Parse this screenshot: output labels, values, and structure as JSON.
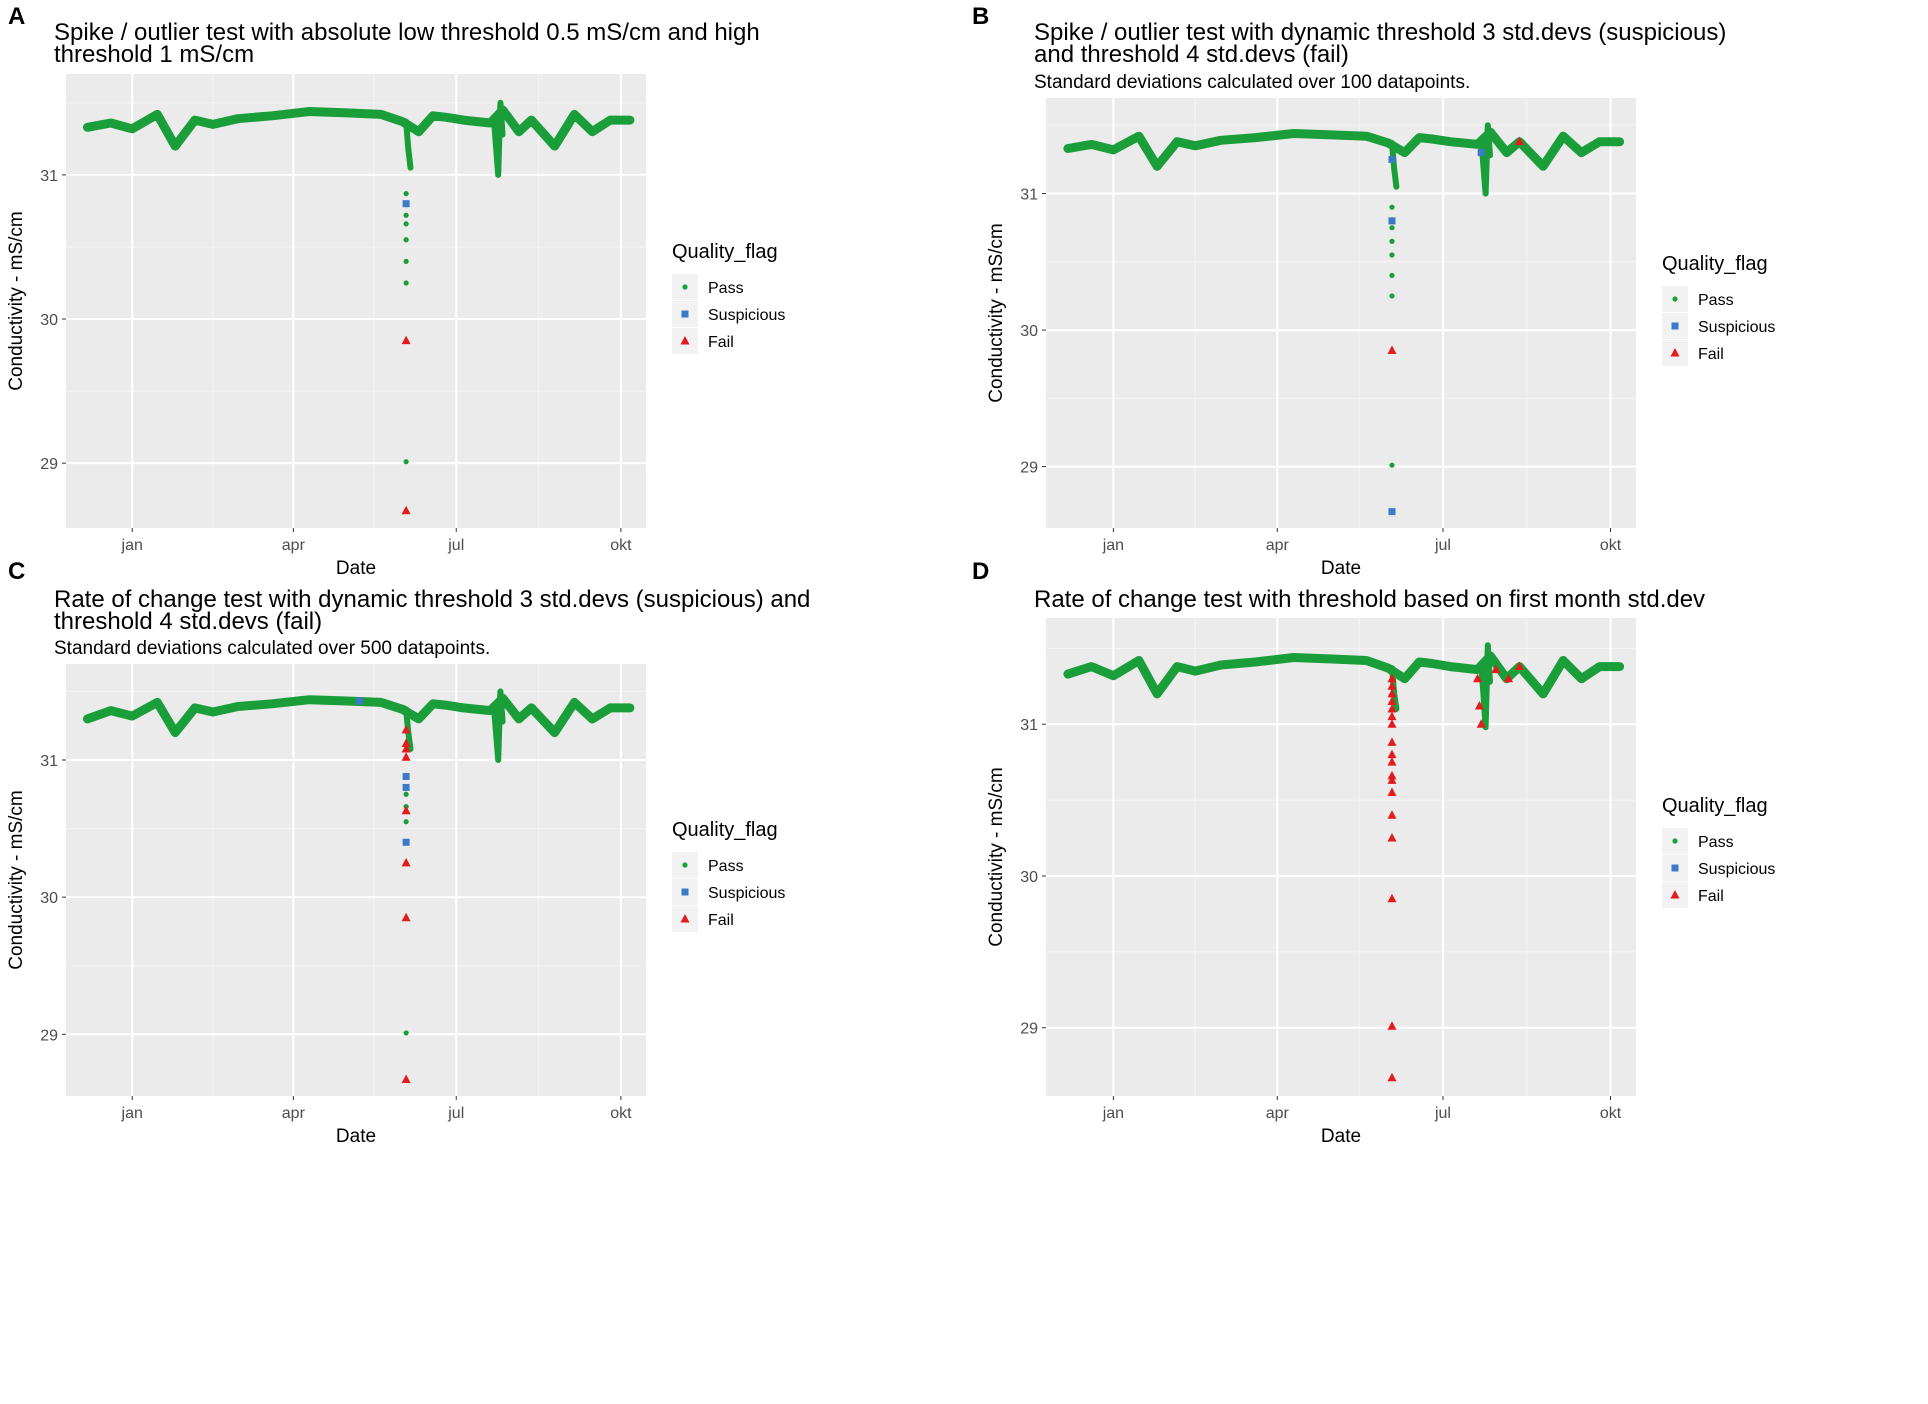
{
  "colors": {
    "pass": "#1a9e3a",
    "suspicious": "#3b7ac6",
    "fail": "#e41a1c",
    "panel_bg": "#ebebeb",
    "grid": "#ffffff"
  },
  "legend": {
    "title": "Quality_flag",
    "entries": [
      {
        "key": "pass",
        "label": "Pass",
        "shape": "circle"
      },
      {
        "key": "suspicious",
        "label": "Suspicious",
        "shape": "square"
      },
      {
        "key": "fail",
        "label": "Fail",
        "shape": "triangle"
      }
    ]
  },
  "chart_data": [
    {
      "panel": "A",
      "type": "scatter",
      "title_lines": [
        "Spike / outlier test with absolute low threshold 0.5 mS/cm and high",
        "threshold 1 mS/cm"
      ],
      "subtitle": "",
      "xlabel": "Date",
      "ylabel": "Conductivity - mS/cm",
      "x_ticks": [
        "jan",
        "apr",
        "jul",
        "okt"
      ],
      "y_ticks": [
        29,
        30,
        31
      ],
      "ylim": [
        28.55,
        31.7
      ],
      "grid": true,
      "legend_position": "right",
      "baseline": {
        "x": [
          "2018-12-07",
          "2018-12-20",
          "2019-01-01",
          "2019-01-15",
          "2019-01-25",
          "2019-02-05",
          "2019-02-15",
          "2019-03-01",
          "2019-03-20",
          "2019-04-10",
          "2019-05-01",
          "2019-05-20",
          "2019-06-01",
          "2019-06-10",
          "2019-06-18",
          "2019-06-25",
          "2019-07-05",
          "2019-07-20",
          "2019-07-27",
          "2019-08-05",
          "2019-08-12",
          "2019-08-25",
          "2019-09-05",
          "2019-09-15",
          "2019-09-25",
          "2019-10-06"
        ],
        "y": [
          31.33,
          31.36,
          31.32,
          31.42,
          31.2,
          31.38,
          31.35,
          31.39,
          31.41,
          31.44,
          31.43,
          31.42,
          31.37,
          31.3,
          31.41,
          31.4,
          31.38,
          31.36,
          31.45,
          31.3,
          31.38,
          31.2,
          31.42,
          31.3,
          31.38,
          31.38
        ]
      },
      "dips": [
        {
          "x": "2019-06-03",
          "y": [
            31.37,
            31.18,
            31.05
          ]
        },
        {
          "x": "2019-07-22",
          "y": [
            31.4,
            31.2,
            31.0,
            31.5,
            31.28
          ]
        }
      ],
      "points": [
        {
          "x": "2019-06-03",
          "y": 30.87,
          "flag": "pass"
        },
        {
          "x": "2019-06-03",
          "y": 30.8,
          "flag": "suspicious"
        },
        {
          "x": "2019-06-03",
          "y": 30.72,
          "flag": "pass"
        },
        {
          "x": "2019-06-03",
          "y": 30.66,
          "flag": "pass"
        },
        {
          "x": "2019-06-03",
          "y": 30.55,
          "flag": "pass"
        },
        {
          "x": "2019-06-03",
          "y": 30.4,
          "flag": "pass"
        },
        {
          "x": "2019-06-03",
          "y": 30.25,
          "flag": "pass"
        },
        {
          "x": "2019-06-03",
          "y": 29.85,
          "flag": "fail"
        },
        {
          "x": "2019-06-03",
          "y": 29.01,
          "flag": "pass"
        },
        {
          "x": "2019-06-03",
          "y": 28.67,
          "flag": "fail"
        }
      ]
    },
    {
      "panel": "B",
      "type": "scatter",
      "title_lines": [
        "Spike / outlier test with dynamic threshold 3 std.devs (suspicious)",
        "and threshold 4 std.devs (fail)"
      ],
      "subtitle": "Standard deviations calculated over 100 datapoints.",
      "xlabel": "Date",
      "ylabel": "Conductivity - mS/cm",
      "x_ticks": [
        "jan",
        "apr",
        "jul",
        "okt"
      ],
      "y_ticks": [
        29,
        30,
        31
      ],
      "ylim": [
        28.55,
        31.7
      ],
      "grid": true,
      "legend_position": "right",
      "baseline": {
        "x": [
          "2018-12-07",
          "2018-12-20",
          "2019-01-01",
          "2019-01-15",
          "2019-01-25",
          "2019-02-05",
          "2019-02-15",
          "2019-03-01",
          "2019-03-20",
          "2019-04-10",
          "2019-05-01",
          "2019-05-20",
          "2019-06-01",
          "2019-06-10",
          "2019-06-18",
          "2019-06-25",
          "2019-07-05",
          "2019-07-20",
          "2019-07-27",
          "2019-08-05",
          "2019-08-12",
          "2019-08-25",
          "2019-09-05",
          "2019-09-15",
          "2019-09-25",
          "2019-10-06"
        ],
        "y": [
          31.33,
          31.36,
          31.32,
          31.42,
          31.2,
          31.38,
          31.35,
          31.39,
          31.41,
          31.44,
          31.43,
          31.42,
          31.37,
          31.3,
          31.41,
          31.4,
          31.38,
          31.36,
          31.45,
          31.3,
          31.38,
          31.2,
          31.42,
          31.3,
          31.38,
          31.38
        ]
      },
      "dips": [
        {
          "x": "2019-06-03",
          "y": [
            31.37,
            31.18,
            31.05
          ]
        },
        {
          "x": "2019-07-22",
          "y": [
            31.4,
            31.2,
            31.0,
            31.5,
            31.28
          ]
        }
      ],
      "points": [
        {
          "x": "2019-06-03",
          "y": 31.25,
          "flag": "suspicious"
        },
        {
          "x": "2019-06-03",
          "y": 30.9,
          "flag": "pass"
        },
        {
          "x": "2019-06-03",
          "y": 30.8,
          "flag": "suspicious"
        },
        {
          "x": "2019-06-03",
          "y": 30.75,
          "flag": "pass"
        },
        {
          "x": "2019-06-03",
          "y": 30.65,
          "flag": "pass"
        },
        {
          "x": "2019-06-03",
          "y": 30.55,
          "flag": "pass"
        },
        {
          "x": "2019-06-03",
          "y": 30.4,
          "flag": "pass"
        },
        {
          "x": "2019-06-03",
          "y": 30.25,
          "flag": "pass"
        },
        {
          "x": "2019-06-03",
          "y": 29.85,
          "flag": "fail"
        },
        {
          "x": "2019-06-03",
          "y": 29.01,
          "flag": "pass"
        },
        {
          "x": "2019-06-03",
          "y": 28.67,
          "flag": "suspicious"
        },
        {
          "x": "2019-07-22",
          "y": 31.3,
          "flag": "suspicious"
        },
        {
          "x": "2019-08-12",
          "y": 31.38,
          "flag": "fail"
        }
      ]
    },
    {
      "panel": "C",
      "type": "scatter",
      "title_lines": [
        "Rate of change test with dynamic threshold 3 std.devs (suspicious) and",
        "threshold 4 std.devs (fail)"
      ],
      "subtitle": "Standard deviations calculated over 500 datapoints.",
      "xlabel": "Date",
      "ylabel": "Conductivity - mS/cm",
      "x_ticks": [
        "jan",
        "apr",
        "jul",
        "okt"
      ],
      "y_ticks": [
        29,
        30,
        31
      ],
      "ylim": [
        28.55,
        31.7
      ],
      "grid": true,
      "legend_position": "right",
      "baseline": {
        "x": [
          "2018-12-07",
          "2018-12-20",
          "2019-01-01",
          "2019-01-15",
          "2019-01-25",
          "2019-02-05",
          "2019-02-15",
          "2019-03-01",
          "2019-03-20",
          "2019-04-10",
          "2019-05-01",
          "2019-05-20",
          "2019-06-01",
          "2019-06-10",
          "2019-06-18",
          "2019-06-25",
          "2019-07-05",
          "2019-07-20",
          "2019-07-27",
          "2019-08-05",
          "2019-08-12",
          "2019-08-25",
          "2019-09-05",
          "2019-09-15",
          "2019-09-25",
          "2019-10-06"
        ],
        "y": [
          31.3,
          31.36,
          31.32,
          31.42,
          31.2,
          31.38,
          31.35,
          31.39,
          31.41,
          31.44,
          31.43,
          31.42,
          31.37,
          31.3,
          31.41,
          31.4,
          31.38,
          31.36,
          31.45,
          31.3,
          31.38,
          31.2,
          31.42,
          31.3,
          31.38,
          31.38
        ]
      },
      "dips": [
        {
          "x": "2019-06-03",
          "y": [
            31.37,
            31.2,
            31.08
          ]
        },
        {
          "x": "2019-07-22",
          "y": [
            31.4,
            31.2,
            31.0,
            31.5,
            31.28
          ]
        }
      ],
      "points": [
        {
          "x": "2019-05-08",
          "y": 31.43,
          "flag": "suspicious"
        },
        {
          "x": "2019-06-03",
          "y": 31.22,
          "flag": "fail"
        },
        {
          "x": "2019-06-03",
          "y": 31.12,
          "flag": "fail"
        },
        {
          "x": "2019-06-03",
          "y": 31.08,
          "flag": "fail"
        },
        {
          "x": "2019-06-03",
          "y": 31.02,
          "flag": "fail"
        },
        {
          "x": "2019-06-03",
          "y": 30.88,
          "flag": "suspicious"
        },
        {
          "x": "2019-06-03",
          "y": 30.8,
          "flag": "suspicious"
        },
        {
          "x": "2019-06-03",
          "y": 30.75,
          "flag": "pass"
        },
        {
          "x": "2019-06-03",
          "y": 30.66,
          "flag": "pass"
        },
        {
          "x": "2019-06-03",
          "y": 30.63,
          "flag": "fail"
        },
        {
          "x": "2019-06-03",
          "y": 30.55,
          "flag": "pass"
        },
        {
          "x": "2019-06-03",
          "y": 30.4,
          "flag": "suspicious"
        },
        {
          "x": "2019-06-03",
          "y": 30.25,
          "flag": "fail"
        },
        {
          "x": "2019-06-03",
          "y": 29.85,
          "flag": "fail"
        },
        {
          "x": "2019-06-03",
          "y": 29.01,
          "flag": "pass"
        },
        {
          "x": "2019-06-03",
          "y": 28.67,
          "flag": "fail"
        }
      ]
    },
    {
      "panel": "D",
      "type": "scatter",
      "title_lines": [
        "Rate of change test with threshold based on first month std.dev"
      ],
      "subtitle": "",
      "xlabel": "Date",
      "ylabel": "Conductivity - mS/cm",
      "x_ticks": [
        "jan",
        "apr",
        "jul",
        "okt"
      ],
      "y_ticks": [
        29,
        30,
        31
      ],
      "ylim": [
        28.55,
        31.7
      ],
      "grid": true,
      "legend_position": "right",
      "baseline": {
        "x": [
          "2018-12-07",
          "2018-12-20",
          "2019-01-01",
          "2019-01-15",
          "2019-01-25",
          "2019-02-05",
          "2019-02-15",
          "2019-03-01",
          "2019-03-20",
          "2019-04-10",
          "2019-05-01",
          "2019-05-20",
          "2019-06-01",
          "2019-06-10",
          "2019-06-18",
          "2019-06-25",
          "2019-07-05",
          "2019-07-20",
          "2019-07-27",
          "2019-08-05",
          "2019-08-12",
          "2019-08-25",
          "2019-09-05",
          "2019-09-15",
          "2019-09-25",
          "2019-10-06"
        ],
        "y": [
          31.33,
          31.38,
          31.32,
          31.42,
          31.2,
          31.38,
          31.35,
          31.39,
          31.41,
          31.44,
          31.43,
          31.42,
          31.37,
          31.3,
          31.41,
          31.4,
          31.38,
          31.36,
          31.45,
          31.3,
          31.38,
          31.2,
          31.42,
          31.3,
          31.38,
          31.38
        ]
      },
      "dips": [
        {
          "x": "2019-06-03",
          "y": [
            31.37,
            31.2,
            31.1
          ]
        },
        {
          "x": "2019-07-22",
          "y": [
            31.4,
            31.2,
            30.98,
            31.52,
            31.28
          ]
        }
      ],
      "points": [
        {
          "x": "2019-06-03",
          "y": 31.3,
          "flag": "fail"
        },
        {
          "x": "2019-06-03",
          "y": 31.25,
          "flag": "fail"
        },
        {
          "x": "2019-06-03",
          "y": 31.2,
          "flag": "fail"
        },
        {
          "x": "2019-06-03",
          "y": 31.15,
          "flag": "fail"
        },
        {
          "x": "2019-06-03",
          "y": 31.1,
          "flag": "fail"
        },
        {
          "x": "2019-06-03",
          "y": 31.05,
          "flag": "fail"
        },
        {
          "x": "2019-06-03",
          "y": 31.0,
          "flag": "fail"
        },
        {
          "x": "2019-06-03",
          "y": 30.88,
          "flag": "fail"
        },
        {
          "x": "2019-06-03",
          "y": 30.8,
          "flag": "fail"
        },
        {
          "x": "2019-06-03",
          "y": 30.75,
          "flag": "fail"
        },
        {
          "x": "2019-06-03",
          "y": 30.66,
          "flag": "fail"
        },
        {
          "x": "2019-06-03",
          "y": 30.63,
          "flag": "fail"
        },
        {
          "x": "2019-06-03",
          "y": 30.55,
          "flag": "fail"
        },
        {
          "x": "2019-06-03",
          "y": 30.4,
          "flag": "fail"
        },
        {
          "x": "2019-06-03",
          "y": 30.25,
          "flag": "fail"
        },
        {
          "x": "2019-06-03",
          "y": 29.85,
          "flag": "fail"
        },
        {
          "x": "2019-06-03",
          "y": 29.01,
          "flag": "fail"
        },
        {
          "x": "2019-06-03",
          "y": 28.67,
          "flag": "fail"
        },
        {
          "x": "2019-07-20",
          "y": 31.3,
          "flag": "fail"
        },
        {
          "x": "2019-07-21",
          "y": 31.12,
          "flag": "fail"
        },
        {
          "x": "2019-07-22",
          "y": 31.0,
          "flag": "fail"
        },
        {
          "x": "2019-07-30",
          "y": 31.36,
          "flag": "fail"
        },
        {
          "x": "2019-08-06",
          "y": 31.3,
          "flag": "fail"
        },
        {
          "x": "2019-08-12",
          "y": 31.38,
          "flag": "fail"
        }
      ]
    }
  ]
}
